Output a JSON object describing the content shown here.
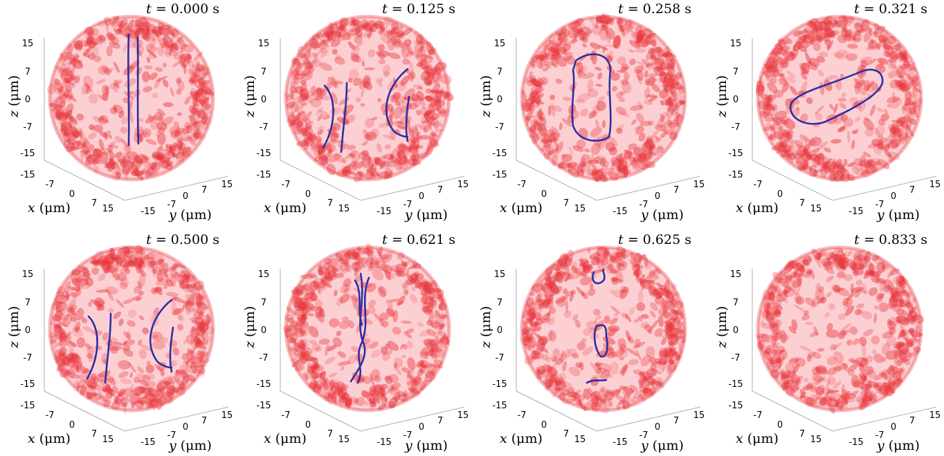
{
  "figure": {
    "axis_labels": {
      "x_var": "x",
      "y_var": "y",
      "z_var": "z",
      "unit": "(μm)"
    },
    "z_ticks": [
      "15",
      "7",
      "0",
      "-7",
      "-15"
    ],
    "x_ticks": [
      "-15",
      "-7",
      "0",
      "7",
      "15"
    ],
    "y_ticks": [
      "-15",
      "-7",
      "0",
      "7",
      "15"
    ],
    "colors": {
      "sphere": "#e8353b",
      "sphere_fill": "#fbc8cb",
      "vortex": "#2b2fa3"
    },
    "panels": [
      {
        "time_var": "t",
        "eq": "=",
        "time": "0.000",
        "unit": "s",
        "vortex_shape": "two-parallel-vertical-lines"
      },
      {
        "time_var": "t",
        "eq": "=",
        "time": "0.125",
        "unit": "s",
        "vortex_shape": "two-arcs"
      },
      {
        "time_var": "t",
        "eq": "=",
        "time": "0.258",
        "unit": "s",
        "vortex_shape": "closed-vertical-ring"
      },
      {
        "time_var": "t",
        "eq": "=",
        "time": "0.321",
        "unit": "s",
        "vortex_shape": "closed-tilted-ring"
      },
      {
        "time_var": "t",
        "eq": "=",
        "time": "0.500",
        "unit": "s",
        "vortex_shape": "two-arcs"
      },
      {
        "time_var": "t",
        "eq": "=",
        "time": "0.621",
        "unit": "s",
        "vortex_shape": "twisted-vertical-pair"
      },
      {
        "time_var": "t",
        "eq": "=",
        "time": "0.625",
        "unit": "s",
        "vortex_shape": "fragments"
      },
      {
        "time_var": "t",
        "eq": "=",
        "time": "0.833",
        "unit": "s",
        "vortex_shape": "none"
      }
    ]
  }
}
